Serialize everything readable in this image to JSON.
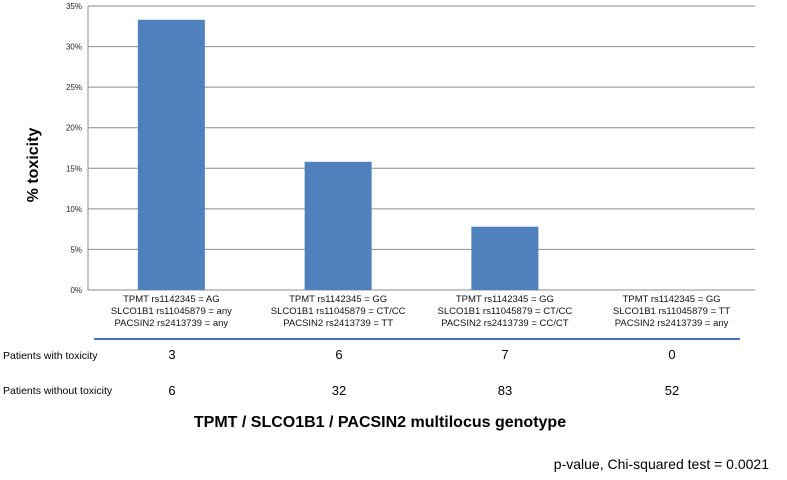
{
  "chart_data": {
    "type": "bar",
    "ylabel": "% toxicity",
    "xlabel": "TPMT / SLCO1B1 / PACSIN2 multilocus genotype",
    "ylim": [
      0,
      35
    ],
    "yticks": [
      "0%",
      "5%",
      "10%",
      "15%",
      "20%",
      "25%",
      "30%",
      "35%"
    ],
    "grid": true,
    "bar_color": "#4F81BD",
    "categories": [
      [
        "TPMT rs1142345 = AG",
        "SLCO1B1 rs11045879 = any",
        "PACSIN2 rs2413739 = any"
      ],
      [
        "TPMT rs1142345 = GG",
        "SLCO1B1 rs11045879 = CT/CC",
        "PACSIN2 rs2413739 = TT"
      ],
      [
        "TPMT rs1142345 = GG",
        "SLCO1B1 rs11045879 = CT/CC",
        "PACSIN2 rs2413739 = CC/CT"
      ],
      [
        "TPMT rs1142345 = GG",
        "SLCO1B1 rs11045879 = TT",
        "PACSIN2 rs2413739 = any"
      ]
    ],
    "values": [
      33.3,
      15.8,
      7.8,
      0
    ]
  },
  "table": {
    "rows": [
      {
        "label": "Patients with toxicity",
        "values": [
          "3",
          "6",
          "7",
          "0"
        ]
      },
      {
        "label": "Patients without toxicity",
        "values": [
          "6",
          "32",
          "83",
          "52"
        ]
      }
    ]
  },
  "footnote": "p-value, Chi-squared test = 0.0021"
}
